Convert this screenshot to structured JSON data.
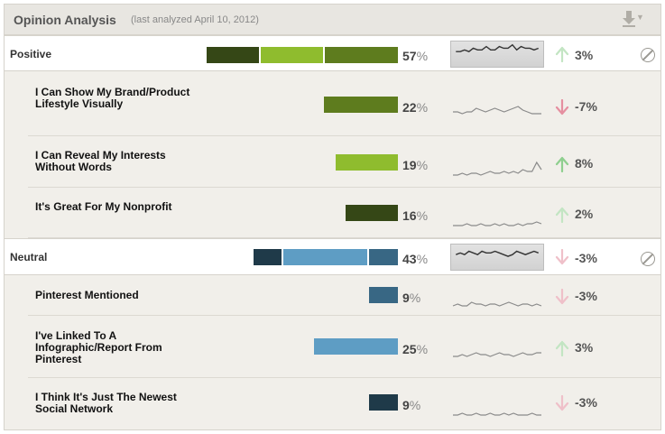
{
  "header": {
    "title": "Opinion Analysis",
    "subtitle": "(last analyzed April 10, 2012)",
    "export_icon": "download-icon"
  },
  "colors": {
    "positive_dark": "#354716",
    "positive_light": "#8fbc2e",
    "positive_mid": "#5e7c1e",
    "neutral_dark": "#1f3a49",
    "neutral_light": "#5e9dc4",
    "neutral_mid": "#386784",
    "up": "#8fcf8f",
    "up_faint": "#c3e5c3",
    "down": "#e58fa0",
    "down_faint": "#efc0c9"
  },
  "rows": [
    {
      "id": "positive",
      "kind": "group",
      "label": "Positive",
      "pct": "57",
      "delta": "3%",
      "trend": "up",
      "trend_strength": "faint",
      "spark": [
        5,
        5,
        4,
        5,
        3,
        4,
        4,
        2,
        4,
        4,
        2,
        3,
        3,
        1,
        4,
        2,
        3,
        3,
        4,
        3
      ]
    },
    {
      "id": "positive-1",
      "kind": "sub",
      "label": "I Can Show My Brand/Product Lifestyle Visually",
      "pct": "22",
      "delta": "-7%",
      "trend": "down",
      "trend_strength": "strong",
      "spark": [
        8,
        8,
        9,
        8,
        8,
        6,
        7,
        8,
        7,
        6,
        7,
        8,
        7,
        6,
        5,
        7,
        8,
        9,
        9,
        9
      ]
    },
    {
      "id": "positive-2",
      "kind": "sub",
      "label": "I Can Reveal My Interests Without Words",
      "pct": "19",
      "delta": "8%",
      "trend": "up",
      "trend_strength": "strong",
      "spark": [
        11,
        11,
        10,
        11,
        10,
        10,
        11,
        10,
        9,
        10,
        10,
        9,
        10,
        9,
        10,
        8,
        9,
        9,
        4,
        8
      ]
    },
    {
      "id": "positive-3",
      "kind": "sub",
      "label": "It's Great For My Nonprofit",
      "pct": "16",
      "delta": "2%",
      "trend": "up",
      "trend_strength": "faint",
      "spark": [
        11,
        11,
        11,
        10,
        11,
        11,
        10,
        11,
        11,
        10,
        11,
        10,
        11,
        11,
        10,
        11,
        10,
        10,
        9,
        10
      ]
    },
    {
      "id": "neutral",
      "kind": "group",
      "label": "Neutral",
      "pct": "43",
      "delta": "-3%",
      "trend": "down",
      "trend_strength": "faint",
      "spark": [
        5,
        4,
        5,
        3,
        4,
        5,
        3,
        4,
        4,
        3,
        4,
        5,
        6,
        5,
        3,
        4,
        5,
        4,
        3,
        4
      ]
    },
    {
      "id": "neutral-1",
      "kind": "sub",
      "label": "Pinterest Mentioned",
      "pct": "9",
      "delta": "-3%",
      "trend": "down",
      "trend_strength": "faint",
      "spark": [
        10,
        9,
        10,
        10,
        8,
        9,
        9,
        10,
        9,
        9,
        10,
        9,
        8,
        9,
        10,
        9,
        9,
        10,
        9,
        10
      ]
    },
    {
      "id": "neutral-2",
      "kind": "sub",
      "label": "I've Linked To A Infographic/Report From Pinterest",
      "pct": "25",
      "delta": "3%",
      "trend": "up",
      "trend_strength": "faint",
      "spark": [
        10,
        10,
        9,
        10,
        9,
        8,
        9,
        9,
        10,
        9,
        8,
        9,
        9,
        10,
        9,
        8,
        9,
        9,
        8,
        8
      ]
    },
    {
      "id": "neutral-3",
      "kind": "sub",
      "label": "I Think It's Just The Newest Social Network",
      "pct": "9",
      "delta": "-3%",
      "trend": "down",
      "trend_strength": "faint",
      "spark": [
        11,
        11,
        10,
        11,
        11,
        10,
        11,
        11,
        10,
        11,
        11,
        10,
        11,
        10,
        11,
        11,
        11,
        10,
        11,
        11
      ]
    }
  ]
}
